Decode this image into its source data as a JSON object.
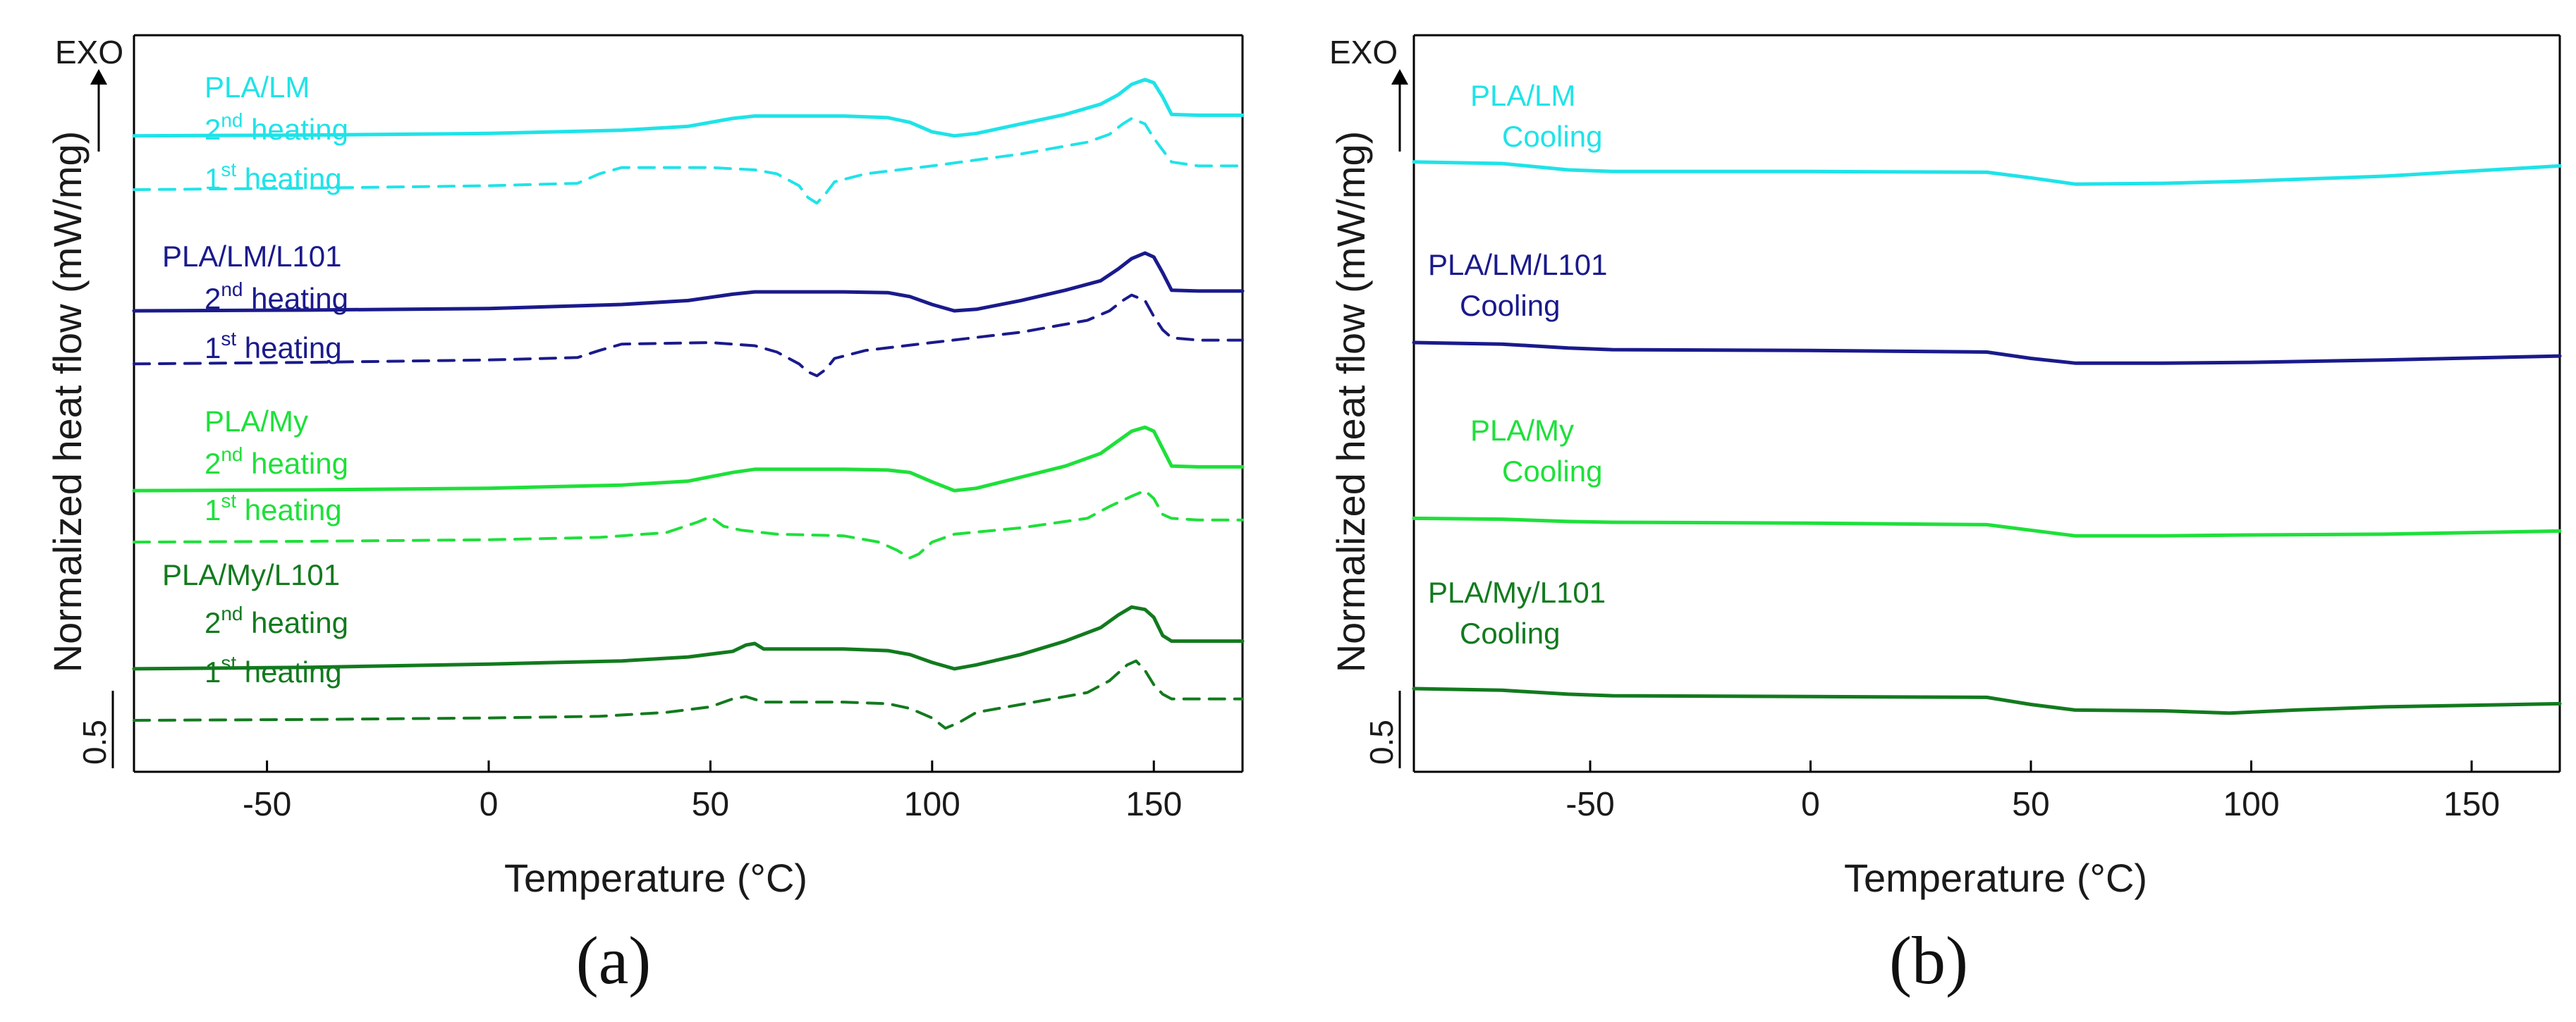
{
  "panels": [
    {
      "id": "a",
      "caption": "(a)",
      "exo_label": "EXO",
      "scale_label": "0.5",
      "ylabel": "Normalized heat flow (mW/mg)",
      "xlabel": "Temperature (°C)",
      "xlim": [
        -80,
        170
      ],
      "xticks": [
        -50,
        0,
        50,
        100,
        150
      ],
      "labels": [
        {
          "lines": [
            "PLA/LM"
          ],
          "color": "#1fe3e8"
        },
        {
          "lines": [
            "2",
            "nd",
            " heating"
          ],
          "color": "#1fe3e8"
        },
        {
          "lines": [
            "1",
            "st",
            " heating"
          ],
          "color": "#1fe3e8"
        },
        {
          "lines": [
            "PLA/LM/L101"
          ],
          "color": "#1a1a8c"
        },
        {
          "lines": [
            "2",
            "nd",
            " heating"
          ],
          "color": "#1a1a8c"
        },
        {
          "lines": [
            "1",
            "st",
            " heating"
          ],
          "color": "#1a1a8c"
        },
        {
          "lines": [
            "PLA/My"
          ],
          "color": "#1ee03a"
        },
        {
          "lines": [
            "2",
            "nd",
            " heating"
          ],
          "color": "#1ee03a"
        },
        {
          "lines": [
            "1",
            "st",
            " heating"
          ],
          "color": "#1ee03a"
        },
        {
          "lines": [
            "PLA/My/L101"
          ],
          "color": "#127a1e"
        },
        {
          "lines": [
            "2",
            "nd",
            " heating"
          ],
          "color": "#127a1e"
        },
        {
          "lines": [
            "1",
            "st",
            " heating"
          ],
          "color": "#127a1e"
        }
      ]
    },
    {
      "id": "b",
      "caption": "(b)",
      "exo_label": "EXO",
      "scale_label": "0.5",
      "ylabel": "Normalized heat flow (mW/mg)",
      "xlabel": "Temperature (°C)",
      "xlim": [
        -90,
        170
      ],
      "xticks": [
        -50,
        0,
        50,
        100,
        150
      ],
      "labels": [
        {
          "lines": [
            "PLA/LM",
            "Cooling"
          ],
          "color": "#1fe3e8"
        },
        {
          "lines": [
            "PLA/LM/L101",
            "Cooling"
          ],
          "color": "#1a1a8c"
        },
        {
          "lines": [
            "PLA/My",
            "Cooling"
          ],
          "color": "#1ee03a"
        },
        {
          "lines": [
            "PLA/My/L101",
            "Cooling"
          ],
          "color": "#127a1e"
        }
      ]
    }
  ],
  "chart_data": [
    {
      "type": "line",
      "panel": "a",
      "title": "",
      "xlabel": "Temperature (°C)",
      "ylabel": "Normalized heat flow (mW/mg)",
      "xlim": [
        -80,
        170
      ],
      "series": [
        {
          "name": "PLA/LM 2nd heating",
          "color": "#1fe3e8",
          "style": "solid",
          "x": [
            -80,
            -40,
            0,
            30,
            45,
            55,
            60,
            70,
            80,
            90,
            95,
            100,
            105,
            110,
            120,
            130,
            138,
            142,
            145,
            148,
            150,
            152,
            154,
            160,
            170
          ],
          "y": [
            8.93,
            8.94,
            8.96,
            9.0,
            9.05,
            9.15,
            9.18,
            9.18,
            9.18,
            9.16,
            9.1,
            8.98,
            8.93,
            8.96,
            9.08,
            9.2,
            9.33,
            9.45,
            9.58,
            9.64,
            9.6,
            9.42,
            9.2,
            9.19,
            9.19
          ]
        },
        {
          "name": "PLA/LM 1st heating",
          "color": "#1fe3e8",
          "style": "dashed",
          "x": [
            -80,
            -40,
            0,
            20,
            25,
            30,
            50,
            60,
            65,
            70,
            72,
            74,
            76,
            78,
            85,
            100,
            120,
            135,
            140,
            143,
            145,
            148,
            150,
            152,
            154,
            160,
            170
          ],
          "y": [
            8.25,
            8.27,
            8.3,
            8.33,
            8.45,
            8.53,
            8.53,
            8.5,
            8.45,
            8.3,
            8.15,
            8.08,
            8.2,
            8.35,
            8.45,
            8.55,
            8.7,
            8.85,
            8.95,
            9.08,
            9.15,
            9.08,
            8.9,
            8.75,
            8.6,
            8.55,
            8.55
          ]
        },
        {
          "name": "PLA/LM/L101 2nd heating",
          "color": "#1a1a8c",
          "style": "solid",
          "x": [
            -80,
            -40,
            0,
            30,
            45,
            55,
            60,
            70,
            80,
            90,
            95,
            100,
            105,
            110,
            120,
            130,
            138,
            142,
            145,
            148,
            150,
            152,
            154,
            160,
            170
          ],
          "y": [
            6.72,
            6.73,
            6.75,
            6.8,
            6.85,
            6.93,
            6.96,
            6.96,
            6.96,
            6.95,
            6.9,
            6.8,
            6.72,
            6.74,
            6.85,
            6.98,
            7.1,
            7.25,
            7.38,
            7.45,
            7.4,
            7.2,
            6.98,
            6.97,
            6.97
          ]
        },
        {
          "name": "PLA/LM/L101 1st heating",
          "color": "#1a1a8c",
          "style": "dashed",
          "x": [
            -80,
            -40,
            0,
            20,
            25,
            30,
            50,
            60,
            65,
            70,
            72,
            74,
            76,
            78,
            85,
            100,
            120,
            135,
            140,
            143,
            145,
            148,
            150,
            152,
            154,
            160,
            170
          ],
          "y": [
            6.05,
            6.07,
            6.1,
            6.13,
            6.22,
            6.3,
            6.32,
            6.28,
            6.2,
            6.05,
            5.95,
            5.9,
            5.98,
            6.12,
            6.22,
            6.32,
            6.45,
            6.6,
            6.72,
            6.85,
            6.92,
            6.85,
            6.65,
            6.48,
            6.38,
            6.35,
            6.35
          ]
        },
        {
          "name": "PLA/My 2nd heating",
          "color": "#1ee03a",
          "style": "solid",
          "x": [
            -80,
            -40,
            0,
            30,
            45,
            55,
            60,
            70,
            80,
            90,
            95,
            100,
            105,
            110,
            120,
            130,
            138,
            142,
            145,
            148,
            150,
            152,
            154,
            160,
            170
          ],
          "y": [
            4.45,
            4.46,
            4.48,
            4.52,
            4.57,
            4.68,
            4.72,
            4.72,
            4.72,
            4.71,
            4.68,
            4.56,
            4.45,
            4.48,
            4.62,
            4.76,
            4.92,
            5.08,
            5.2,
            5.25,
            5.2,
            4.98,
            4.76,
            4.75,
            4.75
          ]
        },
        {
          "name": "PLA/My 1st heating",
          "color": "#1ee03a",
          "style": "dashed",
          "x": [
            -80,
            -40,
            0,
            25,
            40,
            47,
            50,
            53,
            57,
            65,
            80,
            88,
            92,
            95,
            97,
            100,
            105,
            120,
            135,
            140,
            145,
            148,
            150,
            152,
            154,
            160,
            170
          ],
          "y": [
            3.8,
            3.81,
            3.83,
            3.86,
            3.92,
            4.05,
            4.12,
            4.0,
            3.95,
            3.9,
            3.88,
            3.8,
            3.7,
            3.6,
            3.65,
            3.8,
            3.9,
            3.98,
            4.1,
            4.25,
            4.38,
            4.45,
            4.35,
            4.15,
            4.1,
            4.08,
            4.08
          ]
        },
        {
          "name": "PLA/My/L101 2nd heating",
          "color": "#127a1e",
          "style": "solid",
          "x": [
            -80,
            -40,
            0,
            30,
            45,
            55,
            58,
            60,
            62,
            70,
            80,
            90,
            95,
            100,
            105,
            110,
            120,
            130,
            138,
            142,
            145,
            148,
            150,
            152,
            154,
            160,
            170
          ],
          "y": [
            2.2,
            2.22,
            2.26,
            2.3,
            2.35,
            2.42,
            2.5,
            2.52,
            2.45,
            2.45,
            2.45,
            2.43,
            2.38,
            2.28,
            2.2,
            2.25,
            2.38,
            2.55,
            2.72,
            2.88,
            2.98,
            2.95,
            2.85,
            2.62,
            2.55,
            2.55,
            2.55
          ]
        },
        {
          "name": "PLA/My/L101 1st heating",
          "color": "#127a1e",
          "style": "dashed",
          "x": [
            -80,
            -40,
            0,
            25,
            40,
            50,
            55,
            58,
            62,
            70,
            80,
            90,
            95,
            100,
            103,
            106,
            110,
            120,
            135,
            140,
            144,
            146,
            148,
            150,
            152,
            154,
            160,
            170
          ],
          "y": [
            1.55,
            1.56,
            1.58,
            1.6,
            1.65,
            1.72,
            1.82,
            1.85,
            1.78,
            1.78,
            1.78,
            1.76,
            1.7,
            1.58,
            1.45,
            1.52,
            1.65,
            1.75,
            1.9,
            2.05,
            2.25,
            2.3,
            2.18,
            2.0,
            1.88,
            1.82,
            1.82,
            1.82
          ]
        }
      ]
    },
    {
      "type": "line",
      "panel": "b",
      "title": "",
      "xlabel": "Temperature (°C)",
      "ylabel": "Normalized heat flow (mW/mg)",
      "xlim": [
        -90,
        170
      ],
      "series": [
        {
          "name": "PLA/LM Cooling",
          "color": "#1fe3e8",
          "style": "solid",
          "x": [
            -90,
            -70,
            -55,
            -45,
            0,
            40,
            50,
            60,
            80,
            100,
            130,
            170
          ],
          "y": [
            8.6,
            8.58,
            8.5,
            8.48,
            8.48,
            8.47,
            8.4,
            8.32,
            8.33,
            8.36,
            8.42,
            8.55
          ]
        },
        {
          "name": "PLA/LM/L101 Cooling",
          "color": "#1a1a8c",
          "style": "solid",
          "x": [
            -90,
            -70,
            -55,
            -45,
            0,
            40,
            50,
            60,
            80,
            100,
            130,
            170
          ],
          "y": [
            6.32,
            6.3,
            6.25,
            6.23,
            6.22,
            6.2,
            6.12,
            6.06,
            6.06,
            6.07,
            6.1,
            6.15
          ]
        },
        {
          "name": "PLA/My Cooling",
          "color": "#1ee03a",
          "style": "solid",
          "x": [
            -90,
            -70,
            -55,
            -45,
            0,
            40,
            50,
            60,
            80,
            100,
            130,
            170
          ],
          "y": [
            4.1,
            4.09,
            4.06,
            4.05,
            4.04,
            4.02,
            3.95,
            3.88,
            3.88,
            3.89,
            3.9,
            3.94
          ]
        },
        {
          "name": "PLA/My/L101 Cooling",
          "color": "#127a1e",
          "style": "solid",
          "x": [
            -90,
            -70,
            -55,
            -45,
            0,
            40,
            50,
            60,
            80,
            95,
            110,
            130,
            170
          ],
          "y": [
            1.95,
            1.93,
            1.88,
            1.86,
            1.85,
            1.84,
            1.75,
            1.68,
            1.67,
            1.64,
            1.68,
            1.72,
            1.76
          ]
        }
      ]
    }
  ]
}
